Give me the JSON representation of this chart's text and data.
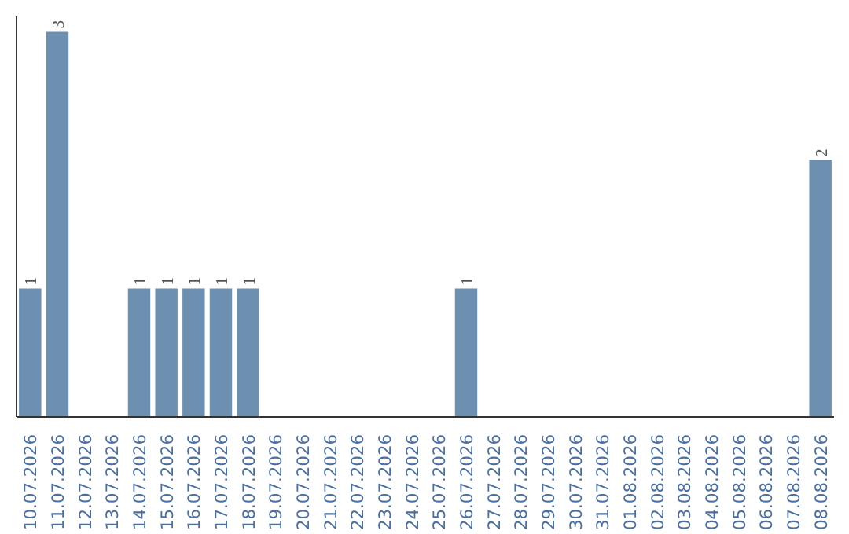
{
  "chart_data": {
    "type": "bar",
    "categories": [
      "10.07.2026",
      "11.07.2026",
      "12.07.2026",
      "13.07.2026",
      "14.07.2026",
      "15.07.2026",
      "16.07.2026",
      "17.07.2026",
      "18.07.2026",
      "19.07.2026",
      "20.07.2026",
      "21.07.2026",
      "22.07.2026",
      "23.07.2026",
      "24.07.2026",
      "25.07.2026",
      "26.07.2026",
      "27.07.2026",
      "28.07.2026",
      "29.07.2026",
      "30.07.2026",
      "31.07.2026",
      "01.08.2026",
      "02.08.2026",
      "03.08.2026",
      "04.08.2026",
      "05.08.2026",
      "06.08.2026",
      "07.08.2026",
      "08.08.2026"
    ],
    "values": [
      1,
      3,
      0,
      0,
      1,
      1,
      1,
      1,
      1,
      0,
      0,
      0,
      0,
      0,
      0,
      0,
      1,
      0,
      0,
      0,
      0,
      0,
      0,
      0,
      0,
      0,
      0,
      0,
      0,
      2
    ],
    "value_labels": [
      "1",
      "3",
      null,
      null,
      "1",
      "1",
      "1",
      "1",
      "1",
      null,
      null,
      null,
      null,
      null,
      null,
      null,
      "1",
      null,
      null,
      null,
      null,
      null,
      null,
      null,
      null,
      null,
      null,
      null,
      null,
      "2"
    ],
    "color": "#6d8fb0",
    "tick_labels": "x",
    "grid": false
  }
}
